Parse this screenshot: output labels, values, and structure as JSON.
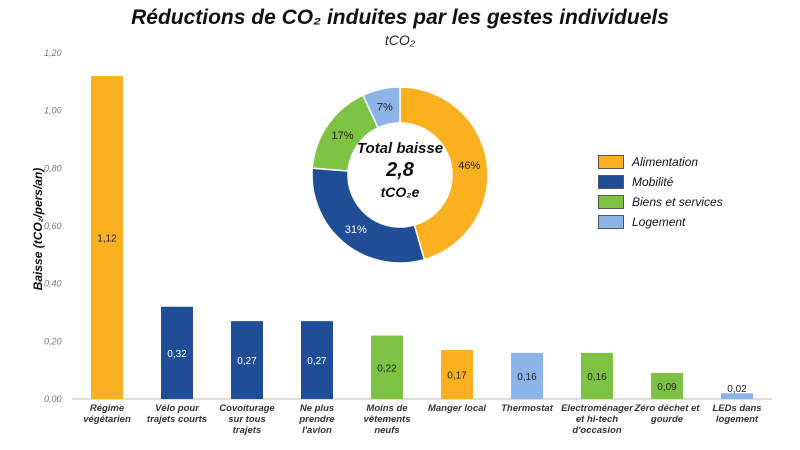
{
  "chart_data": {
    "type": "bar",
    "title": "Réductions de CO₂ induites par les gestes individuels",
    "subtitle": "tCO₂",
    "xlabel": "",
    "ylabel": "Baisse (tCO₂/pers/an)",
    "ylim": [
      0,
      1.2
    ],
    "yticks": [
      "0,00",
      "0,20",
      "0,40",
      "0,60",
      "0,80",
      "1,00",
      "1,20"
    ],
    "categories": [
      "Régime végétarien",
      "Vélo pour trajets courts",
      "Covoiturage sur tous trajets",
      "Ne plus prendre l'avion",
      "Moins de vêtements neufs",
      "Manger local",
      "Thermostat",
      "Electroménager et hi-tech d'occasion",
      "Zéro déchet et gourde",
      "LEDs dans logement"
    ],
    "values": [
      1.12,
      0.32,
      0.27,
      0.27,
      0.22,
      0.17,
      0.16,
      0.16,
      0.09,
      0.02
    ],
    "value_labels": [
      "1,12",
      "0,32",
      "0,27",
      "0,27",
      "0,22",
      "0,17",
      "0,16",
      "0,16",
      "0,09",
      "0,02"
    ],
    "bar_groups": [
      "Alimentation",
      "Mobilité",
      "Mobilité",
      "Mobilité",
      "Biens et services",
      "Alimentation",
      "Logement",
      "Biens et services",
      "Biens et services",
      "Logement"
    ],
    "legend": [
      {
        "name": "Alimentation",
        "color": "#FBB01F"
      },
      {
        "name": "Mobilité",
        "color": "#1F4E96"
      },
      {
        "name": "Biens et services",
        "color": "#7DC242"
      },
      {
        "name": "Logement",
        "color": "#8DB4E8"
      }
    ],
    "legend_position": "right",
    "donut": {
      "type": "pie",
      "slices": [
        {
          "name": "Alimentation",
          "value": 46,
          "label": "46%"
        },
        {
          "name": "Mobilité",
          "value": 31,
          "label": "31%"
        },
        {
          "name": "Biens et services",
          "value": 17,
          "label": "17%"
        },
        {
          "name": "Logement",
          "value": 7,
          "label": "7%"
        }
      ],
      "center_line1": "Total baisse",
      "center_value": "2,8",
      "center_unit": "tCO₂e"
    }
  }
}
